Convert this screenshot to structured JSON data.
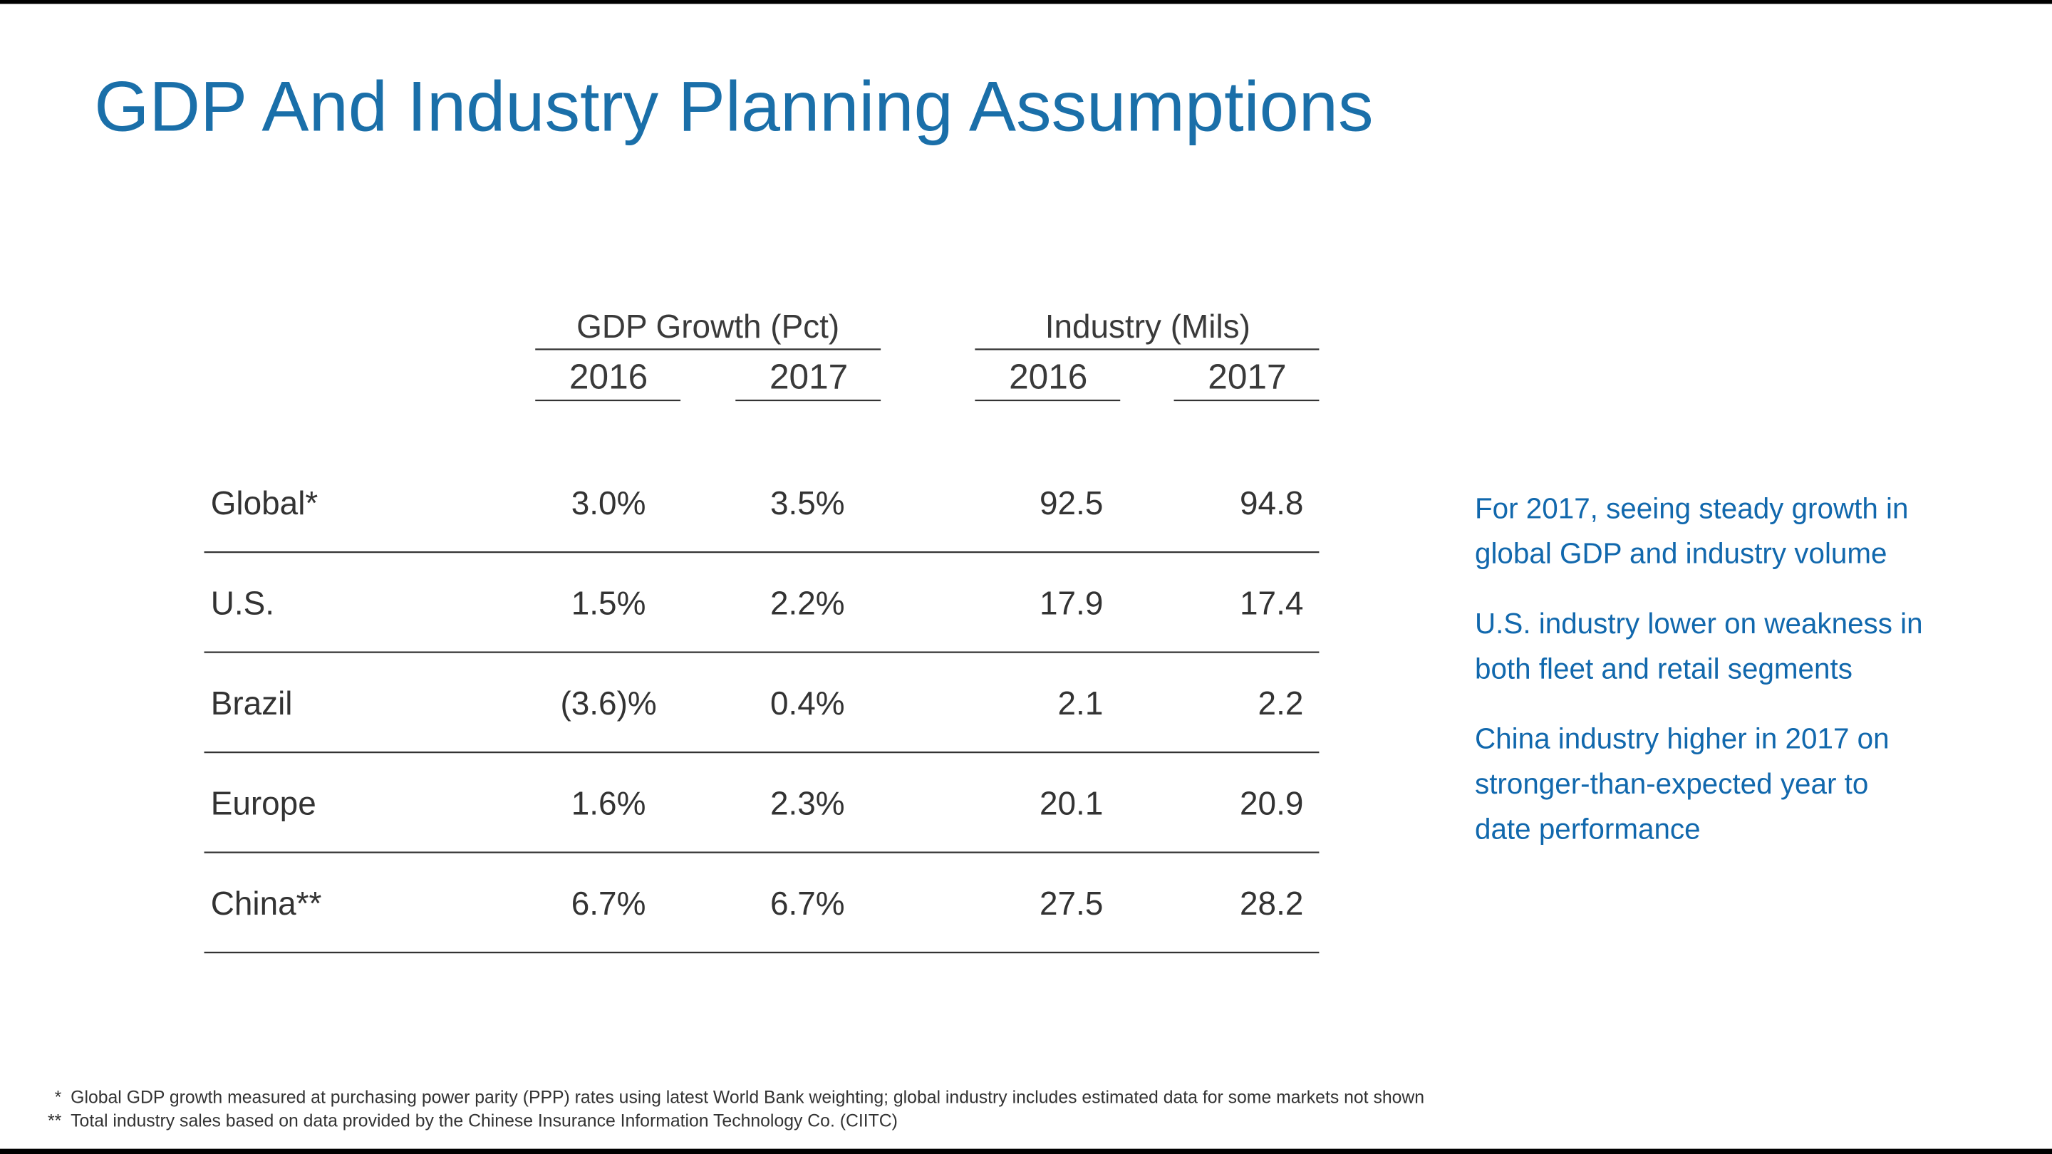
{
  "header": {
    "title": "GDP And Industry Planning Assumptions"
  },
  "table": {
    "groups": [
      "GDP Growth (Pct)",
      "Industry (Mils)"
    ],
    "years": [
      "2016",
      "2017",
      "2016",
      "2017"
    ],
    "rows": [
      [
        "Global*",
        "3.0%",
        "3.5%",
        "92.5",
        "94.8"
      ],
      [
        "U.S.",
        "1.5%",
        "2.2%",
        "17.9",
        "17.4"
      ],
      [
        "Brazil",
        "(3.6)%",
        "0.4%",
        "2.1",
        "2.2"
      ],
      [
        "Europe",
        "1.6%",
        "2.3%",
        "20.1",
        "20.9"
      ],
      [
        "China**",
        "6.7%",
        "6.7%",
        "27.5",
        "28.2"
      ]
    ]
  },
  "bullets": [
    [
      "For 2017, seeing steady growth in",
      "global GDP and industry volume"
    ],
    [
      "U.S. industry lower on weakness in",
      "both fleet and retail segments"
    ],
    [
      "China industry higher in 2017 on",
      "stronger-than-expected year to",
      "date performance"
    ]
  ],
  "footnotes": [
    {
      "marker": "*",
      "text": "Global GDP growth measured at purchasing power parity (PPP) rates using latest World Bank weighting; global industry includes estimated data for some markets not shown"
    },
    {
      "marker": "**",
      "text": "Total industry sales based on data provided by the Chinese Insurance Information Technology Co. (CIITC)"
    }
  ]
}
